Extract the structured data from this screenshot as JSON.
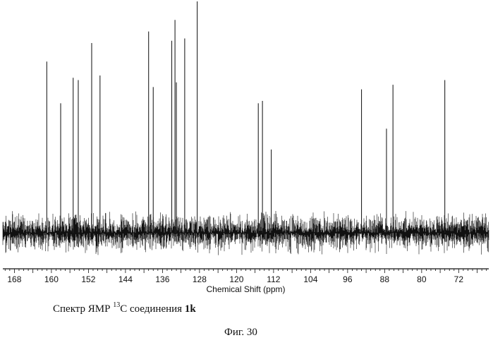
{
  "chart_data": {
    "type": "line",
    "title": "",
    "xlabel": "Chemical Shift (ppm)",
    "ylabel": "",
    "xlim": [
      170.5,
      65.5
    ],
    "x_direction": "decreasing",
    "grid": false,
    "x_ticks": [
      168,
      160,
      152,
      144,
      136,
      128,
      120,
      112,
      104,
      96,
      88,
      80,
      72
    ],
    "x_tick_labels": [
      "168",
      "160",
      "152",
      "144",
      "136",
      "128",
      "120",
      "112",
      "104",
      "96",
      "88",
      "80",
      "72"
    ],
    "series": [
      {
        "x": [
          161.0,
          158.0,
          155.3,
          154.2,
          151.3,
          149.5,
          139.0,
          138.0,
          134.0,
          133.3,
          133.0,
          131.2,
          128.5,
          115.3,
          114.4,
          112.5,
          93.0,
          87.6,
          86.2,
          75.0
        ],
        "y": [
          0.74,
          0.56,
          0.67,
          0.66,
          0.82,
          0.68,
          0.87,
          0.63,
          0.83,
          0.92,
          0.65,
          0.84,
          1.0,
          0.56,
          0.57,
          0.36,
          0.62,
          0.45,
          0.64,
          0.66
        ]
      }
    ]
  },
  "caption": {
    "prefix": "Спектр ЯМР ",
    "superscript": "13",
    "middle": "C соединения ",
    "compound": "1k"
  },
  "figure_label": "Фиг. 30"
}
